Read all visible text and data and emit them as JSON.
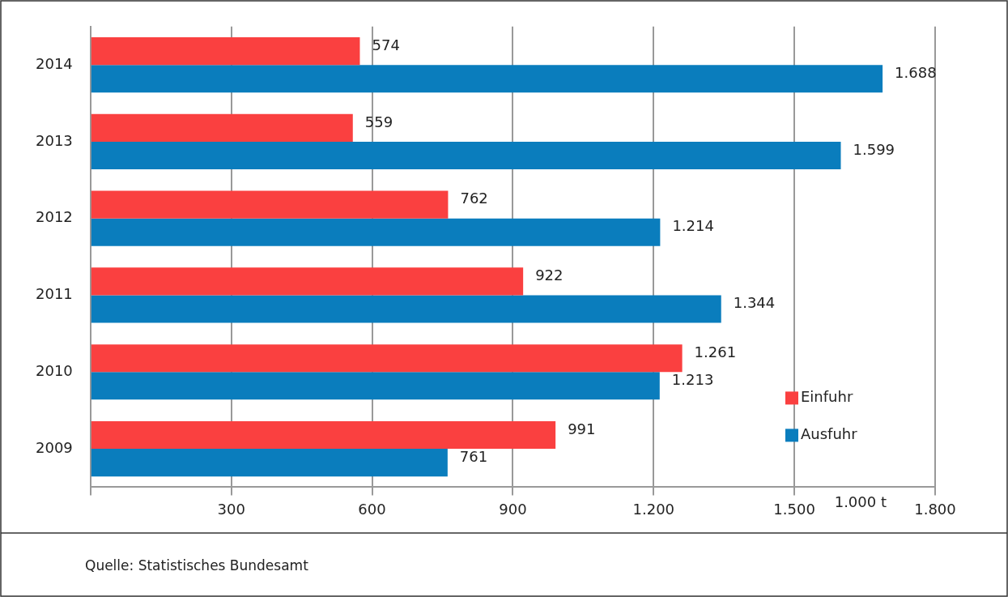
{
  "chart_data": {
    "type": "bar",
    "orientation": "horizontal",
    "categories": [
      "2014",
      "2013",
      "2012",
      "2011",
      "2010",
      "2009"
    ],
    "series": [
      {
        "name": "Einfuhr",
        "color": "#fa4040",
        "values": [
          574,
          559,
          762,
          922,
          1261,
          991
        ],
        "value_labels": [
          "574",
          "559",
          "762",
          "922",
          "1.261",
          "991"
        ]
      },
      {
        "name": "Ausfuhr",
        "color": "#0a7dbd",
        "values": [
          1688,
          1599,
          1214,
          1344,
          1213,
          761
        ],
        "value_labels": [
          "1.688",
          "1.599",
          "1.214",
          "1.344",
          "1.213",
          "761"
        ]
      }
    ],
    "xlim": [
      0,
      1800
    ],
    "xticks": [
      {
        "value": 0,
        "label": null
      },
      300,
      600,
      900,
      {
        "value": 1200,
        "label": "1.200"
      },
      {
        "value": 1500,
        "label": "1.500"
      },
      {
        "value": 1800,
        "label": "1.800"
      }
    ],
    "xlabel": "1.000 t",
    "grid": "x",
    "legend": "bottom right",
    "annotations": [
      "Quelle: Statistisches Bundesamt"
    ]
  }
}
